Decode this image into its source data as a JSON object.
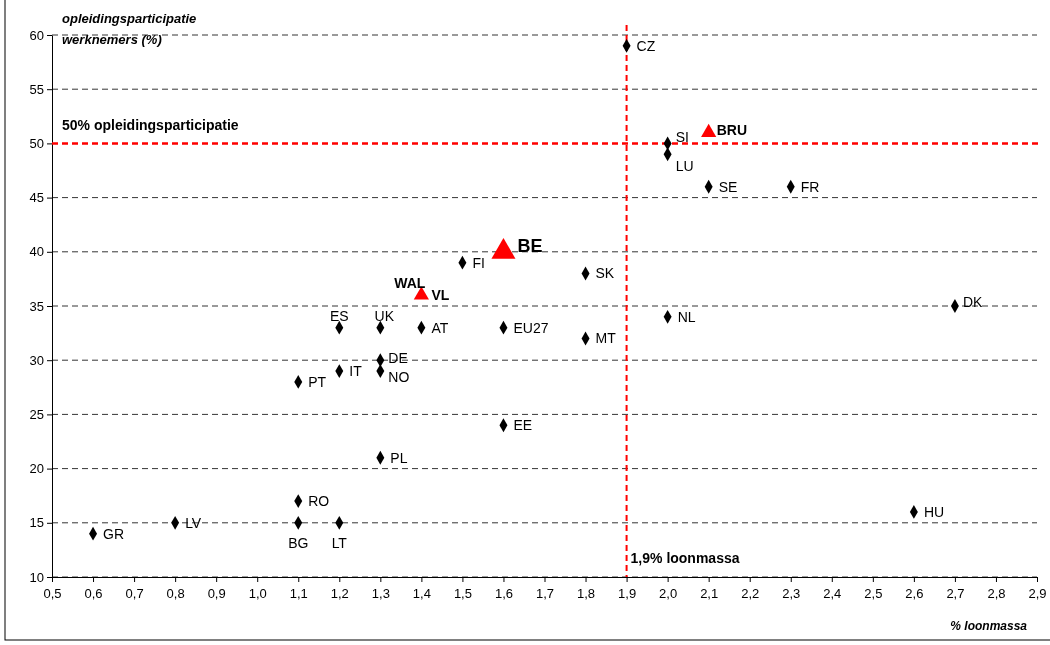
{
  "chart_data": {
    "type": "scatter",
    "xlabel": "% loonmassa",
    "ylabel": "opleidingsparticipatie werknemers (%)",
    "series": [
      {
        "color": "#000000",
        "marker": "diamond",
        "x": [
          1.9,
          2.0,
          2.0,
          2.1,
          2.3,
          1.5,
          1.8,
          2.7,
          1.2,
          1.3,
          1.4,
          1.6,
          2.0,
          1.8,
          1.3,
          1.2,
          1.3,
          1.1,
          1.6,
          1.3,
          1.1,
          0.8,
          1.1,
          1.2,
          0.6,
          2.6
        ],
        "values": [
          59,
          50,
          49,
          46,
          46,
          39,
          38,
          35,
          33,
          33,
          33,
          33,
          34,
          32,
          30,
          29,
          29,
          28,
          24,
          21,
          17,
          15,
          15,
          15,
          14,
          16
        ]
      },
      {
        "color": "#ff0000",
        "marker": "triangle",
        "x": [
          2.1,
          1.6,
          1.4
        ],
        "values": [
          51,
          40,
          36
        ],
        "sizes": [
          0.4,
          1,
          0.4
        ]
      }
    ],
    "annotations": [
      {
        "text": "CZ",
        "x": 1.9,
        "y": 59
      },
      {
        "text": "SI",
        "x": 2.0,
        "y": 50
      },
      {
        "text": "LU",
        "x": 2.0,
        "y": 49
      },
      {
        "text": "SE",
        "x": 2.1,
        "y": 46
      },
      {
        "text": "FR",
        "x": 2.3,
        "y": 46
      },
      {
        "text": "FI",
        "x": 1.5,
        "y": 39
      },
      {
        "text": "SK",
        "x": 1.8,
        "y": 38
      },
      {
        "text": "DK",
        "x": 2.7,
        "y": 35
      },
      {
        "text": "ES",
        "x": 1.2,
        "y": 33
      },
      {
        "text": "UK",
        "x": 1.3,
        "y": 33
      },
      {
        "text": "AT",
        "x": 1.4,
        "y": 33
      },
      {
        "text": "EU27",
        "x": 1.6,
        "y": 33
      },
      {
        "text": "NL",
        "x": 2.0,
        "y": 34
      },
      {
        "text": "MT",
        "x": 1.8,
        "y": 32
      },
      {
        "text": "DE",
        "x": 1.3,
        "y": 30
      },
      {
        "text": "IT",
        "x": 1.2,
        "y": 29
      },
      {
        "text": "NO",
        "x": 1.3,
        "y": 29
      },
      {
        "text": "PT",
        "x": 1.1,
        "y": 28
      },
      {
        "text": "EE",
        "x": 1.6,
        "y": 24
      },
      {
        "text": "PL",
        "x": 1.3,
        "y": 21
      },
      {
        "text": "RO",
        "x": 1.1,
        "y": 17
      },
      {
        "text": "LV",
        "x": 0.8,
        "y": 15
      },
      {
        "text": "BG",
        "x": 1.1,
        "y": 15
      },
      {
        "text": "LT",
        "x": 1.2,
        "y": 15
      },
      {
        "text": "GR",
        "x": 0.6,
        "y": 14
      },
      {
        "text": "HU",
        "x": 2.6,
        "y": 16
      },
      {
        "text": "BRU",
        "x": 2.1,
        "y": 51
      },
      {
        "text": "BE",
        "x": 1.6,
        "y": 40
      },
      {
        "text": "WAL",
        "x": 1.4,
        "y": 36
      },
      {
        "text": "VL",
        "x": 1.4,
        "y": 36
      }
    ],
    "ref_lines": [
      {
        "axis": "x",
        "value": 1.9,
        "label": "1,9% loonmassa",
        "color": "#ff0000",
        "line_style": "dashed"
      },
      {
        "axis": "y",
        "value": 50,
        "label": "50% opleidingsparticipatie",
        "color": "#ff0000",
        "line_style": "dashed"
      }
    ],
    "xlim": [
      0.5,
      2.9
    ],
    "xticks": [
      {
        "value": 0.5,
        "label": "0,5"
      },
      {
        "value": 0.6,
        "label": "0,6"
      },
      {
        "value": 0.7,
        "label": "0,7"
      },
      {
        "value": 0.8,
        "label": "0,8"
      },
      {
        "value": 0.9,
        "label": "0,9"
      },
      {
        "value": 1.0,
        "label": "1,0"
      },
      {
        "value": 1.1,
        "label": "1,1"
      },
      {
        "value": 1.2,
        "label": "1,2"
      },
      {
        "value": 1.3,
        "label": "1,3"
      },
      {
        "value": 1.4,
        "label": "1,4"
      },
      {
        "value": 1.5,
        "label": "1,5"
      },
      {
        "value": 1.6,
        "label": "1,6"
      },
      {
        "value": 1.7,
        "label": "1,7"
      },
      {
        "value": 1.8,
        "label": "1,8"
      },
      {
        "value": 1.9,
        "label": "1,9"
      },
      {
        "value": 2.0,
        "label": "2,0"
      },
      {
        "value": 2.1,
        "label": "2,1"
      },
      {
        "value": 2.2,
        "label": "2,2"
      },
      {
        "value": 2.3,
        "label": "2,3"
      },
      {
        "value": 2.4,
        "label": "2,4"
      },
      {
        "value": 2.5,
        "label": "2,5"
      },
      {
        "value": 2.6,
        "label": "2,6"
      },
      {
        "value": 2.7,
        "label": "2,7"
      },
      {
        "value": 2.8,
        "label": "2,8"
      },
      {
        "value": 2.9,
        "label": "2,9"
      }
    ],
    "ylim": [
      10,
      60
    ],
    "yticks": [
      10,
      15,
      20,
      25,
      30,
      35,
      40,
      45,
      50,
      55,
      60
    ],
    "grid": "y"
  }
}
